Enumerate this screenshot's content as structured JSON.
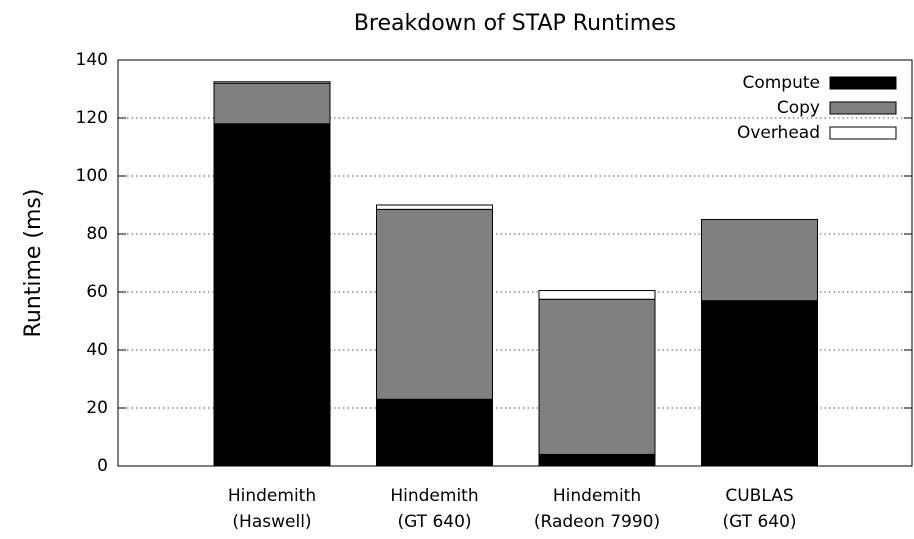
{
  "chart_data": {
    "type": "stacked_bar",
    "title": "Breakdown of STAP Runtimes",
    "y_label": "Runtime (ms)",
    "categories": [
      "Hindemith\n(Haswell)",
      "Hindemith\n(GT 640)",
      "Hindemith\n(Radeon 7990)",
      "CUBLAS\n(GT 640)"
    ],
    "series": [
      {
        "name": "Compute",
        "color": "#000000",
        "values": [
          118,
          23,
          4,
          57
        ]
      },
      {
        "name": "Copy",
        "color": "#808080",
        "values": [
          14,
          65.5,
          53.5,
          28
        ]
      },
      {
        "name": "Overhead",
        "color": "#ffffff",
        "values": [
          0.5,
          1.5,
          3,
          0
        ]
      }
    ],
    "ylim": [
      0,
      140
    ],
    "yticks": [
      0,
      20,
      40,
      60,
      80,
      100,
      120,
      140
    ],
    "grid": true,
    "legend": "top-right"
  }
}
